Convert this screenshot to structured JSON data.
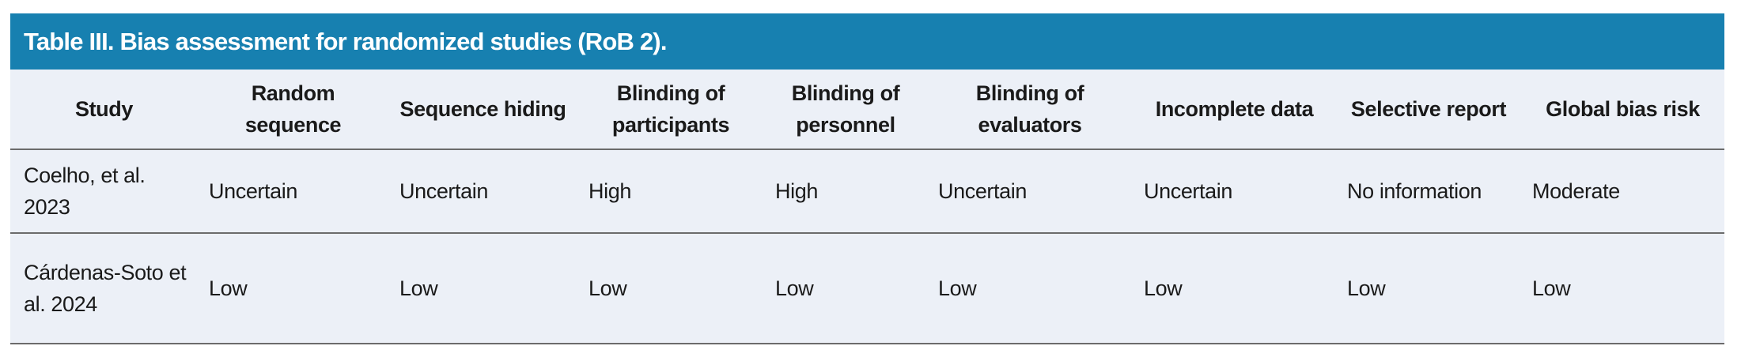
{
  "title": "Table III.  Bias assessment for randomized studies (RoB 2).",
  "colors": {
    "header_bg": "#1780b0",
    "table_bg": "#ecf0f7"
  },
  "columns": [
    "Study",
    "Random sequence",
    "Sequence hiding",
    "Blinding of participants",
    "Blinding of personnel",
    "Blinding of evaluators",
    "Incomplete data",
    "Selective report",
    "Global bias risk"
  ],
  "rows": [
    [
      "Coelho, et al. 2023",
      "Uncertain",
      "Uncertain",
      "High",
      "High",
      "Uncertain",
      "Uncertain",
      "No information",
      "Moderate"
    ],
    [
      "Cárdenas-Soto et al. 2024",
      "Low",
      "Low",
      "Low",
      "Low",
      "Low",
      "Low",
      "Low",
      "Low"
    ]
  ]
}
